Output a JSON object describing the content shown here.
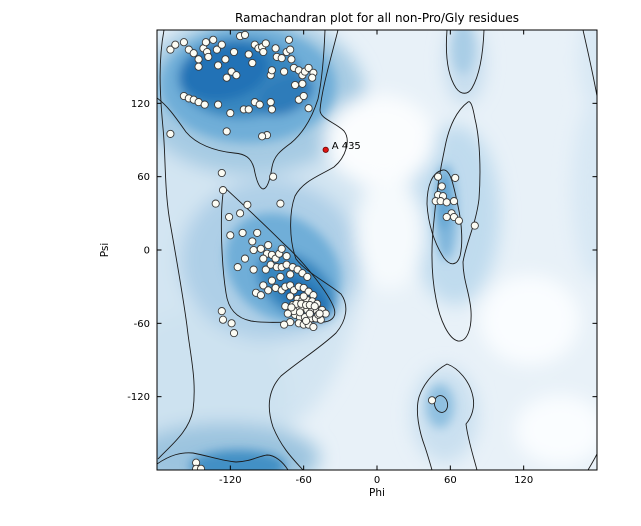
{
  "chart_data": {
    "type": "scatter",
    "title": "Ramachandran plot for all non-Pro/Gly residues",
    "xlabel": "Phi",
    "ylabel": "Psi",
    "xlim": [
      -180,
      180
    ],
    "ylim": [
      -180,
      180
    ],
    "x_ticks": [
      {
        "value": -120,
        "label": "-120"
      },
      {
        "value": -60,
        "label": "-60"
      },
      {
        "value": 0,
        "label": "0"
      },
      {
        "value": 60,
        "label": "60"
      },
      {
        "value": 120,
        "label": "120"
      }
    ],
    "y_ticks": [
      {
        "value": 120,
        "label": "120"
      },
      {
        "value": 60,
        "label": "60"
      },
      {
        "value": 0,
        "label": "0"
      },
      {
        "value": -60,
        "label": "-60"
      },
      {
        "value": -120,
        "label": "-120"
      }
    ],
    "grid": false,
    "background_density_regions": [
      {
        "name": "beta-sheet",
        "center_phi": -105,
        "center_psi": 140
      },
      {
        "name": "alpha-helix",
        "center_phi": -63,
        "center_psi": -42
      },
      {
        "name": "left-handed-alpha",
        "center_phi": 55,
        "center_psi": 35
      },
      {
        "name": "lower-left-band",
        "center_phi": -125,
        "center_psi": -178
      },
      {
        "name": "lower-right-pocket",
        "center_phi": 52,
        "center_psi": -127
      }
    ],
    "contour_levels": 2,
    "highlight": {
      "label": "A 435",
      "phi": -42,
      "psi": 82,
      "color": "#dd1512"
    },
    "marker": {
      "radius": 3.6,
      "fill": "#fcfcf4",
      "edge": "#3a3a3a"
    },
    "colors": {
      "density_dark": "#1d6cb0",
      "density_mid": "#4292c6",
      "density_light": "#a6cbe3",
      "density_wash": "#d3e5f2",
      "plot_bg": "#e8f1f8",
      "contour_line": "#1b1b1b"
    },
    "points": [
      [
        -169,
        164
      ],
      [
        -165,
        168
      ],
      [
        -158,
        170
      ],
      [
        -154,
        164
      ],
      [
        -150,
        161
      ],
      [
        -146,
        156
      ],
      [
        -146,
        150
      ],
      [
        -142,
        165
      ],
      [
        -140,
        170
      ],
      [
        -139,
        162
      ],
      [
        -138,
        158
      ],
      [
        -134,
        172
      ],
      [
        -131,
        164
      ],
      [
        -130,
        151
      ],
      [
        -127,
        168
      ],
      [
        -124,
        156
      ],
      [
        -123,
        141
      ],
      [
        -119,
        146
      ],
      [
        -117,
        162
      ],
      [
        -115,
        143
      ],
      [
        -112,
        175
      ],
      [
        -108,
        176
      ],
      [
        -105,
        160
      ],
      [
        -102,
        153
      ],
      [
        -100,
        168
      ],
      [
        -97,
        165
      ],
      [
        -94,
        166
      ],
      [
        -93,
        162
      ],
      [
        -91,
        169
      ],
      [
        -87,
        143
      ],
      [
        -86,
        147
      ],
      [
        -83,
        165
      ],
      [
        -82,
        158
      ],
      [
        -78,
        157
      ],
      [
        -76,
        146
      ],
      [
        -74,
        162
      ],
      [
        -72,
        172
      ],
      [
        -71,
        164
      ],
      [
        -70,
        156
      ],
      [
        -68,
        149
      ],
      [
        -64,
        147
      ],
      [
        -61,
        143
      ],
      [
        -59,
        146
      ],
      [
        -56,
        149
      ],
      [
        -52,
        145
      ],
      [
        -61,
        136
      ],
      [
        -67,
        135
      ],
      [
        -158,
        126
      ],
      [
        -154,
        124
      ],
      [
        -150,
        123
      ],
      [
        -146,
        121
      ],
      [
        -141,
        119
      ],
      [
        -130,
        119
      ],
      [
        -120,
        112
      ],
      [
        -123,
        97
      ],
      [
        -109,
        115
      ],
      [
        -105,
        115
      ],
      [
        -100,
        121
      ],
      [
        -96,
        119
      ],
      [
        -87,
        121
      ],
      [
        -86,
        115
      ],
      [
        -90,
        94
      ],
      [
        -94,
        93
      ],
      [
        -64,
        123
      ],
      [
        -60,
        126
      ],
      [
        -56,
        116
      ],
      [
        -53,
        141
      ],
      [
        -169,
        95
      ],
      [
        -127,
        63
      ],
      [
        -85,
        60
      ],
      [
        -126,
        49
      ],
      [
        -132,
        38
      ],
      [
        -106,
        37
      ],
      [
        -79,
        38
      ],
      [
        -121,
        27
      ],
      [
        -112,
        30
      ],
      [
        -98,
        14
      ],
      [
        -120,
        12
      ],
      [
        -110,
        14
      ],
      [
        -102,
        7
      ],
      [
        -89,
        4
      ],
      [
        -101,
        0
      ],
      [
        -95,
        1
      ],
      [
        -90,
        -3
      ],
      [
        -93,
        -7
      ],
      [
        -86,
        -4
      ],
      [
        -83,
        -7
      ],
      [
        -80,
        -3
      ],
      [
        -78,
        1
      ],
      [
        -74,
        -5
      ],
      [
        -108,
        -7
      ],
      [
        -114,
        -14
      ],
      [
        -101,
        -16
      ],
      [
        -91,
        -16
      ],
      [
        -87,
        -12
      ],
      [
        -82,
        -14
      ],
      [
        -78,
        -14
      ],
      [
        -74,
        -12
      ],
      [
        -69,
        -14
      ],
      [
        -65,
        -16
      ],
      [
        -61,
        -19
      ],
      [
        -57,
        -22
      ],
      [
        -71,
        -20
      ],
      [
        -79,
        -22
      ],
      [
        -86,
        -25
      ],
      [
        -93,
        -29
      ],
      [
        -99,
        -35
      ],
      [
        -95,
        -37
      ],
      [
        -89,
        -33
      ],
      [
        -83,
        -31
      ],
      [
        -78,
        -33
      ],
      [
        -75,
        -30
      ],
      [
        -71,
        -29
      ],
      [
        -68,
        -33
      ],
      [
        -64,
        -30
      ],
      [
        -60,
        -31
      ],
      [
        -56,
        -34
      ],
      [
        -52,
        -37
      ],
      [
        -71,
        -38
      ],
      [
        -65,
        -40
      ],
      [
        -61,
        -41
      ],
      [
        -57,
        -41
      ],
      [
        -53,
        -42
      ],
      [
        -49,
        -44
      ],
      [
        -75,
        -46
      ],
      [
        -69,
        -45
      ],
      [
        -65,
        -48
      ],
      [
        -61,
        -48
      ],
      [
        -57,
        -49
      ],
      [
        -53,
        -49
      ],
      [
        -49,
        -50
      ],
      [
        -45,
        -49
      ],
      [
        -67,
        -53
      ],
      [
        -63,
        -55
      ],
      [
        -59,
        -55
      ],
      [
        -54,
        -56
      ],
      [
        -50,
        -56
      ],
      [
        -46,
        -57
      ],
      [
        -42,
        -52
      ],
      [
        -71,
        -59
      ],
      [
        -76,
        -61
      ],
      [
        -64,
        -60
      ],
      [
        -60,
        -61
      ],
      [
        -56,
        -61
      ],
      [
        -52,
        -63
      ],
      [
        -126,
        -57
      ],
      [
        -117,
        -68
      ],
      [
        -127,
        -50
      ],
      [
        -119,
        -60
      ],
      [
        -66,
        -44
      ],
      [
        -62,
        -44
      ],
      [
        -58,
        -45
      ],
      [
        -68,
        -50
      ],
      [
        -73,
        -52
      ],
      [
        -58,
        -58
      ],
      [
        -48,
        -53
      ],
      [
        -55,
        -52
      ],
      [
        -63,
        -51
      ],
      [
        -70,
        -47
      ],
      [
        -60,
        -38
      ],
      [
        -55,
        -45
      ],
      [
        -51,
        -46
      ],
      [
        -47,
        -52
      ],
      [
        50,
        60
      ],
      [
        64,
        59
      ],
      [
        53,
        52
      ],
      [
        50,
        45
      ],
      [
        54,
        44
      ],
      [
        48,
        40
      ],
      [
        52,
        40
      ],
      [
        57,
        39
      ],
      [
        63,
        40
      ],
      [
        61,
        30
      ],
      [
        57,
        27
      ],
      [
        63,
        27
      ],
      [
        67,
        24
      ],
      [
        80,
        20
      ],
      [
        45,
        -123
      ],
      [
        -148,
        -174
      ],
      [
        -148,
        -179
      ],
      [
        -144,
        -179
      ]
    ]
  }
}
